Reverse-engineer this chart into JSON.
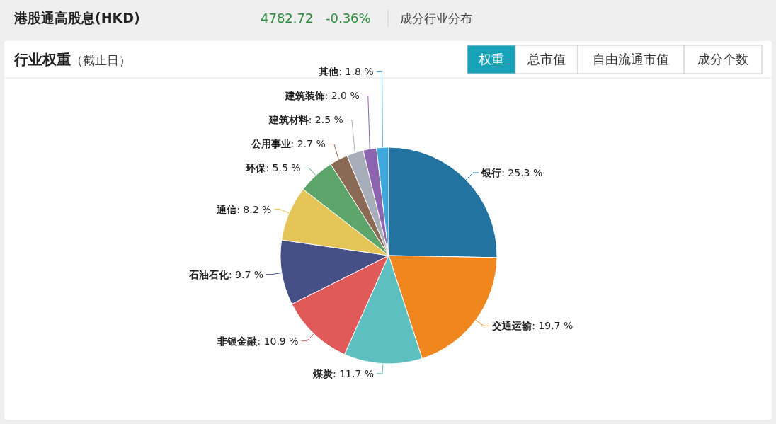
{
  "chart_data": {
    "type": "pie",
    "title": "行业权重",
    "subtitle": "（截止日）",
    "annotations": [
      "港股通高股息(HKD)",
      "4782.72",
      "-0.36%",
      "成分行业分布",
      "权重",
      "总市值",
      "自由流通市值",
      "成分个数"
    ],
    "categories": [
      "银行",
      "交通运输",
      "煤炭",
      "非银金融",
      "石油石化",
      "通信",
      "环保",
      "公用事业",
      "建筑材料",
      "建筑装饰",
      "其他"
    ],
    "values": [
      25.3,
      19.7,
      11.7,
      10.9,
      9.7,
      8.2,
      5.5,
      2.7,
      2.5,
      2.0,
      1.8
    ],
    "value_labels": [
      ": 25.3 %",
      ": 19.7 %",
      ": 11.7 %",
      ": 10.9 %",
      ": 9.7 %",
      ": 8.2 %",
      ": 5.5 %",
      ": 2.7 %",
      ": 2.5 %",
      ": 2.0 %",
      ": 1.8 %"
    ],
    "colors": [
      "#22739f",
      "#f0861e",
      "#5dbfbf",
      "#e05a5a",
      "#465087",
      "#e5c458",
      "#5ea56c",
      "#8b6a55",
      "#a8aeb9",
      "#8d64b0",
      "#3fa8dc"
    ]
  }
}
